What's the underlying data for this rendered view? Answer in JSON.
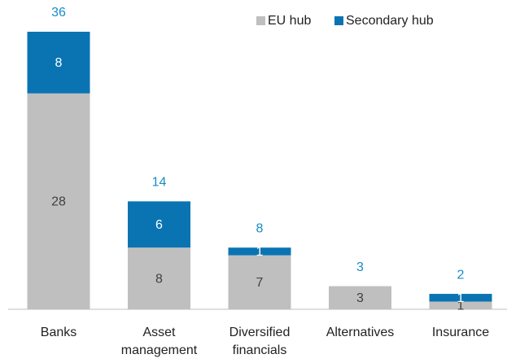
{
  "chart_data": {
    "type": "stacked_bar",
    "categories": [
      "Banks",
      "Asset management",
      "Diversified financials",
      "Alternatives",
      "Insurance"
    ],
    "series": [
      {
        "name": "EU hub",
        "color": "#bfbfbf",
        "values": [
          28,
          8,
          7,
          3,
          1
        ]
      },
      {
        "name": "Secondary hub",
        "color": "#0a74b3",
        "values": [
          8,
          6,
          1,
          null,
          1
        ]
      }
    ],
    "totals": [
      36,
      14,
      8,
      3,
      2
    ],
    "legend": "top-right"
  }
}
